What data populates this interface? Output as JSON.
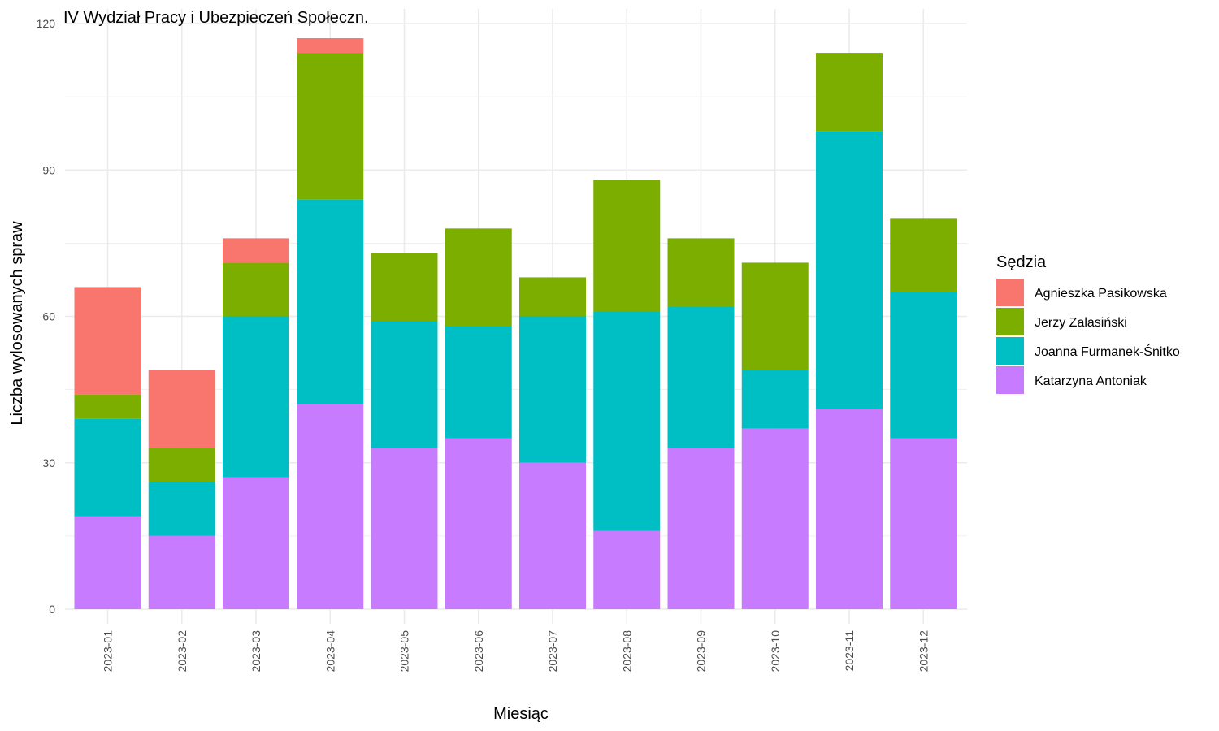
{
  "chart_data": {
    "type": "bar",
    "stacked": true,
    "title": "IV Wydział Pracy i Ubezpieczeń Społeczn.",
    "xlabel": "Miesiąc",
    "ylabel": "Liczba wylosowanych spraw",
    "ylim": [
      0,
      120
    ],
    "yticks": [
      0,
      30,
      60,
      90,
      120
    ],
    "grid": true,
    "legend_title": "Sędzia",
    "legend_position": "right",
    "categories": [
      "2023-01",
      "2023-02",
      "2023-03",
      "2023-04",
      "2023-05",
      "2023-06",
      "2023-07",
      "2023-08",
      "2023-09",
      "2023-10",
      "2023-11",
      "2023-12"
    ],
    "series": [
      {
        "name": "Katarzyna Antoniak",
        "color": "#C77CFF",
        "values": [
          19,
          15,
          27,
          42,
          33,
          35,
          30,
          16,
          33,
          37,
          41,
          35
        ]
      },
      {
        "name": "Joanna Furmanek-Śnitko",
        "color": "#00BFC4",
        "values": [
          20,
          11,
          33,
          42,
          26,
          23,
          30,
          45,
          29,
          12,
          57,
          30
        ]
      },
      {
        "name": "Jerzy Zalasiński",
        "color": "#7CAE00",
        "values": [
          5,
          7,
          11,
          30,
          14,
          20,
          8,
          27,
          14,
          22,
          16,
          15
        ]
      },
      {
        "name": "Agnieszka Pasikowska",
        "color": "#F8766D",
        "values": [
          22,
          16,
          5,
          3,
          0,
          0,
          0,
          0,
          0,
          0,
          0,
          0
        ]
      }
    ],
    "legend_order": [
      "Agnieszka Pasikowska",
      "Jerzy Zalasiński",
      "Joanna Furmanek-Śnitko",
      "Katarzyna Antoniak"
    ]
  }
}
